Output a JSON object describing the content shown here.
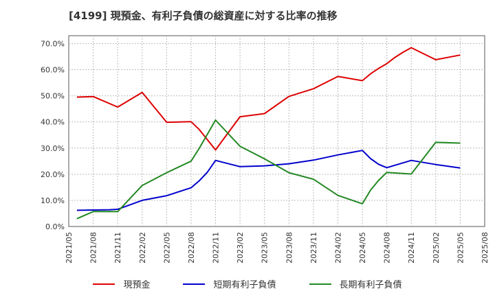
{
  "chart_data": {
    "type": "line",
    "title": "[4199]  現預金、有利子負債の総資産に対する比率の推移",
    "xlabel": "",
    "ylabel": "",
    "ylim": [
      0,
      0.73
    ],
    "yticks": [
      0,
      0.1,
      0.2,
      0.3,
      0.4,
      0.5,
      0.6,
      0.7
    ],
    "ytick_labels": [
      "0.0%",
      "10.0%",
      "20.0%",
      "30.0%",
      "40.0%",
      "50.0%",
      "60.0%",
      "70.0%"
    ],
    "xlim": [
      0,
      51
    ],
    "xticks": [
      0,
      3,
      6,
      9,
      12,
      15,
      18,
      21,
      24,
      27,
      30,
      33,
      36,
      39,
      42,
      45,
      48,
      51
    ],
    "xtick_labels": [
      "2021/05",
      "2021/08",
      "2021/11",
      "2022/02",
      "2022/05",
      "2022/08",
      "2022/11",
      "2023/02",
      "2023/05",
      "2023/08",
      "2023/11",
      "2024/02",
      "2024/05",
      "2024/08",
      "2024/11",
      "2025/02",
      "2025/05",
      "2025/08"
    ],
    "grid": true,
    "legend_position": "bottom",
    "series": [
      {
        "name": "現預金",
        "color": "#dd0000",
        "x": [
          1,
          3,
          6,
          9,
          12,
          15,
          16,
          18,
          21,
          24,
          27,
          30,
          33,
          36,
          37,
          38,
          39,
          40,
          41,
          42,
          45,
          48
        ],
        "values": [
          0.495,
          0.497,
          0.457,
          0.513,
          0.399,
          0.401,
          0.371,
          0.293,
          0.42,
          0.432,
          0.498,
          0.527,
          0.574,
          0.558,
          0.584,
          0.605,
          0.623,
          0.647,
          0.667,
          0.684,
          0.638,
          0.656
        ]
      },
      {
        "name": "短期有利子負債",
        "color": "#0000cc",
        "x": [
          1,
          3,
          5,
          6,
          9,
          12,
          15,
          16,
          17,
          18,
          21,
          24,
          27,
          30,
          33,
          36,
          37,
          38,
          39,
          42,
          45,
          48
        ],
        "values": [
          0.062,
          0.063,
          0.064,
          0.066,
          0.1,
          0.118,
          0.148,
          0.175,
          0.208,
          0.253,
          0.229,
          0.232,
          0.24,
          0.254,
          0.274,
          0.291,
          0.26,
          0.238,
          0.225,
          0.253,
          0.237,
          0.224
        ]
      },
      {
        "name": "長期有利子負債",
        "color": "#228822",
        "x": [
          1,
          3,
          5,
          6,
          9,
          12,
          15,
          16,
          18,
          21,
          24,
          27,
          30,
          33,
          36,
          37,
          38,
          39,
          42,
          45,
          48
        ],
        "values": [
          0.03,
          0.057,
          0.057,
          0.057,
          0.157,
          0.206,
          0.25,
          0.299,
          0.407,
          0.307,
          0.259,
          0.206,
          0.181,
          0.119,
          0.087,
          0.139,
          0.177,
          0.207,
          0.201,
          0.322,
          0.319
        ]
      }
    ]
  }
}
